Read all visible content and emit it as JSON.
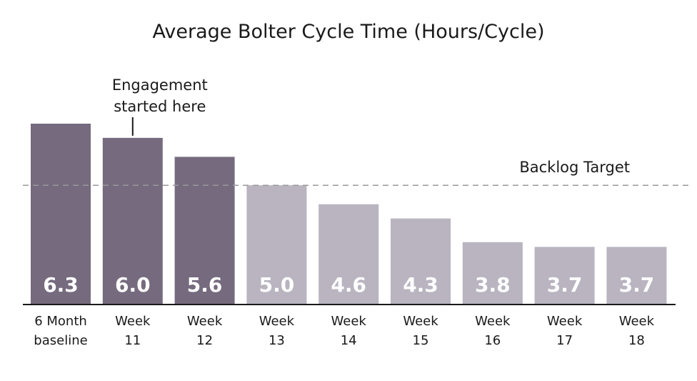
{
  "chart_data": {
    "type": "bar",
    "title": "Average Bolter Cycle Time (Hours/Cycle)",
    "categories": [
      [
        "6 Month",
        "baseline"
      ],
      [
        "Week",
        "11"
      ],
      [
        "Week",
        "12"
      ],
      [
        "Week",
        "13"
      ],
      [
        "Week",
        "14"
      ],
      [
        "Week",
        "15"
      ],
      [
        "Week",
        "16"
      ],
      [
        "Week",
        "17"
      ],
      [
        "Week",
        "18"
      ]
    ],
    "values": [
      6.3,
      6.0,
      5.6,
      5.0,
      4.6,
      4.3,
      3.8,
      3.7,
      3.7
    ],
    "value_labels": [
      "6.3",
      "6.0",
      "5.6",
      "5.0",
      "4.6",
      "4.3",
      "3.8",
      "3.7",
      "3.7"
    ],
    "bar_colors": [
      "#756a7e",
      "#756a7e",
      "#756a7e",
      "#b9b4c0",
      "#b9b4c0",
      "#b9b4c0",
      "#b9b4c0",
      "#b9b4c0",
      "#b9b4c0"
    ],
    "target": {
      "label": "Backlog Target",
      "value": 5.0,
      "line_color": "#999999"
    },
    "annotation": {
      "lines": [
        "Engagement",
        "started here"
      ],
      "category_index": 1
    },
    "ylim": [
      2.5,
      6.3
    ],
    "xlabel": "",
    "ylabel": "",
    "grid": false,
    "legend": "none"
  }
}
